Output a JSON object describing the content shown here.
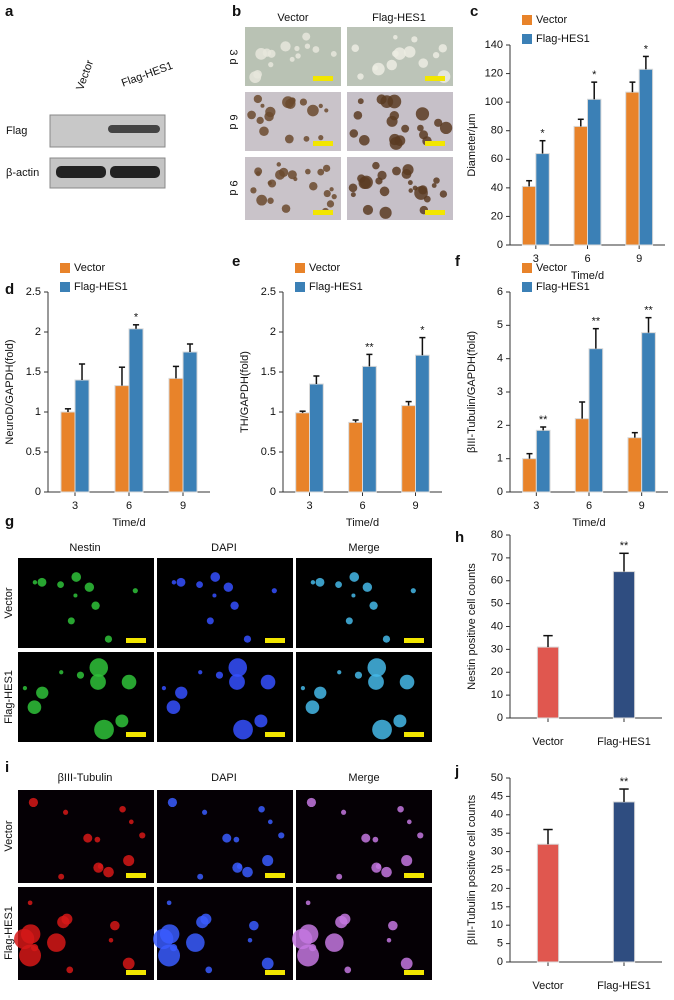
{
  "panels": {
    "a": {
      "label": "a",
      "columns": [
        "Vector",
        "Flag-HES1"
      ],
      "rows": [
        "Flag",
        "β-actin"
      ]
    },
    "b": {
      "label": "b",
      "columns": [
        "Vector",
        "Flag-HES1"
      ],
      "rows": [
        "3 d",
        "6 d",
        "9 d"
      ]
    },
    "g": {
      "label": "g",
      "columns": [
        "Nestin",
        "DAPI",
        "Merge"
      ],
      "rows": [
        "Vector",
        "Flag-HES1"
      ]
    },
    "i": {
      "label": "i",
      "columns": [
        "βIII-Tubulin",
        "DAPI",
        "Merge"
      ],
      "rows": [
        "Vector",
        "Flag-HES1"
      ]
    }
  },
  "chart_data": [
    {
      "type": "bar",
      "panel_label": "c",
      "ylabel": "Diameter/μm",
      "xlabel": "Time/d",
      "categories": [
        "3",
        "6",
        "9"
      ],
      "series": [
        {
          "name": "Vector",
          "color": "#e8832a",
          "values": [
            41,
            83,
            107
          ],
          "errors": [
            4,
            5,
            7
          ],
          "annotations": [
            null,
            null,
            null
          ]
        },
        {
          "name": "Flag-HES1",
          "color": "#3b80b6",
          "values": [
            64,
            102,
            123
          ],
          "errors": [
            9,
            12,
            9
          ],
          "annotations": [
            "*",
            "*",
            "*"
          ]
        }
      ],
      "ylim": [
        0,
        140
      ],
      "yticks": [
        0,
        20,
        40,
        60,
        80,
        100,
        120,
        140
      ],
      "legend": "top-left"
    },
    {
      "type": "bar",
      "panel_label": "d",
      "ylabel": "NeuroD/GAPDH(fold)",
      "xlabel": "Time/d",
      "categories": [
        "3",
        "6",
        "9"
      ],
      "series": [
        {
          "name": "Vector",
          "color": "#e8832a",
          "values": [
            1.0,
            1.33,
            1.42
          ],
          "errors": [
            0.04,
            0.23,
            0.15
          ],
          "annotations": [
            null,
            null,
            null
          ]
        },
        {
          "name": "Flag-HES1",
          "color": "#3b80b6",
          "values": [
            1.4,
            2.04,
            1.75
          ],
          "errors": [
            0.2,
            0.05,
            0.1
          ],
          "annotations": [
            null,
            "*",
            null
          ]
        }
      ],
      "ylim": [
        0,
        2.5
      ],
      "yticks": [
        0,
        0.5,
        1,
        1.5,
        2,
        2.5
      ],
      "legend": "top-left"
    },
    {
      "type": "bar",
      "panel_label": "e",
      "ylabel": "TH/GAPDH(fold)",
      "xlabel": "Time/d",
      "categories": [
        "3",
        "6",
        "9"
      ],
      "series": [
        {
          "name": "Vector",
          "color": "#e8832a",
          "values": [
            0.99,
            0.87,
            1.08
          ],
          "errors": [
            0.02,
            0.03,
            0.05
          ],
          "annotations": [
            null,
            null,
            null
          ]
        },
        {
          "name": "Flag-HES1",
          "color": "#3b80b6",
          "values": [
            1.35,
            1.57,
            1.71
          ],
          "errors": [
            0.1,
            0.15,
            0.22
          ],
          "annotations": [
            null,
            "**",
            "*"
          ]
        }
      ],
      "ylim": [
        0,
        2.5
      ],
      "yticks": [
        0,
        0.5,
        1,
        1.5,
        2,
        2.5
      ],
      "legend": "top-left"
    },
    {
      "type": "bar",
      "panel_label": "f",
      "ylabel": "βIII-Tubulin/GAPDH(fold)",
      "xlabel": "Time/d",
      "categories": [
        "3",
        "6",
        "9"
      ],
      "series": [
        {
          "name": "Vector",
          "color": "#e8832a",
          "values": [
            1.0,
            2.2,
            1.63
          ],
          "errors": [
            0.15,
            0.5,
            0.15
          ],
          "annotations": [
            null,
            null,
            null
          ]
        },
        {
          "name": "Flag-HES1",
          "color": "#3b80b6",
          "values": [
            1.85,
            4.3,
            4.78
          ],
          "errors": [
            0.1,
            0.6,
            0.45
          ],
          "annotations": [
            "**",
            "**",
            "**"
          ]
        }
      ],
      "ylim": [
        0,
        6
      ],
      "yticks": [
        0,
        1,
        2,
        3,
        4,
        5,
        6
      ],
      "legend": "top-left"
    },
    {
      "type": "bar",
      "panel_label": "h",
      "ylabel": "Nestin positive cell counts",
      "categories": [
        "Vector",
        "Flag-HES1"
      ],
      "values": [
        31,
        64
      ],
      "errors": [
        5,
        8
      ],
      "colors": [
        "#e0574f",
        "#2f4d80"
      ],
      "annotations": [
        null,
        "**"
      ],
      "ylim": [
        0,
        80
      ],
      "yticks": [
        0,
        10,
        20,
        30,
        40,
        50,
        60,
        70,
        80
      ]
    },
    {
      "type": "bar",
      "panel_label": "j",
      "ylabel": "βIII-Tubulin positive cell counts",
      "categories": [
        "Vector",
        "Flag-HES1"
      ],
      "values": [
        32,
        43.5
      ],
      "errors": [
        4,
        3.5
      ],
      "colors": [
        "#e0574f",
        "#2f4d80"
      ],
      "annotations": [
        null,
        "**"
      ],
      "ylim": [
        0,
        50
      ],
      "yticks": [
        0,
        5,
        10,
        15,
        20,
        25,
        30,
        35,
        40,
        45,
        50
      ]
    }
  ]
}
